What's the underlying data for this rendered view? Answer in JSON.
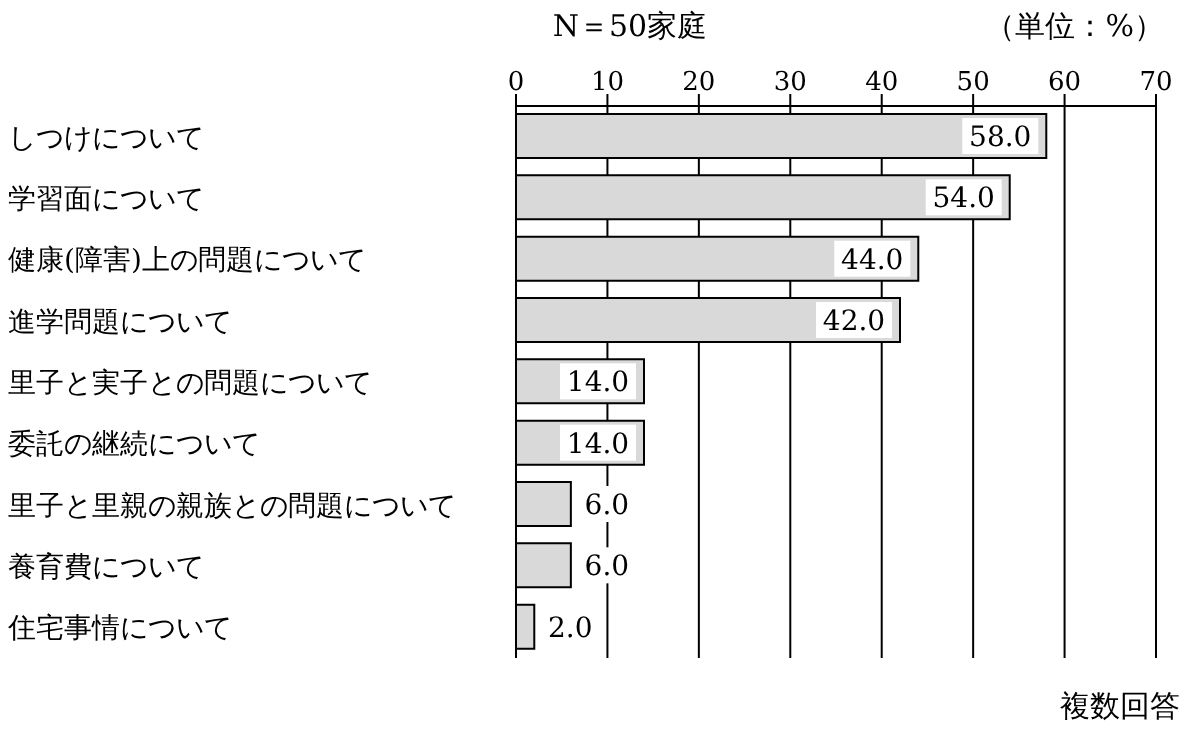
{
  "chart_data": {
    "type": "bar",
    "orientation": "horizontal",
    "title": "N＝50家庭",
    "annotations": [
      "（単位：%）",
      "複数回答"
    ],
    "categories": [
      "しつけについて",
      "学習面について",
      "健康(障害)上の問題について",
      "進学問題について",
      "里子と実子との問題について",
      "委託の継続について",
      "里子と里親の親族との問題について",
      "養育費について",
      "住宅事情について"
    ],
    "values": [
      58,
      54,
      44,
      42,
      14,
      14,
      6,
      6,
      2
    ],
    "value_labels": [
      "58.0",
      "54.0",
      "44.0",
      "42.0",
      "14.0",
      "14.0",
      "6.0",
      "6.0",
      "2.0"
    ],
    "color": "#d9d9d9",
    "xlim": [
      0,
      70
    ],
    "xticks": [
      0,
      10,
      20,
      30,
      40,
      50,
      60,
      70
    ],
    "grid": "x"
  }
}
